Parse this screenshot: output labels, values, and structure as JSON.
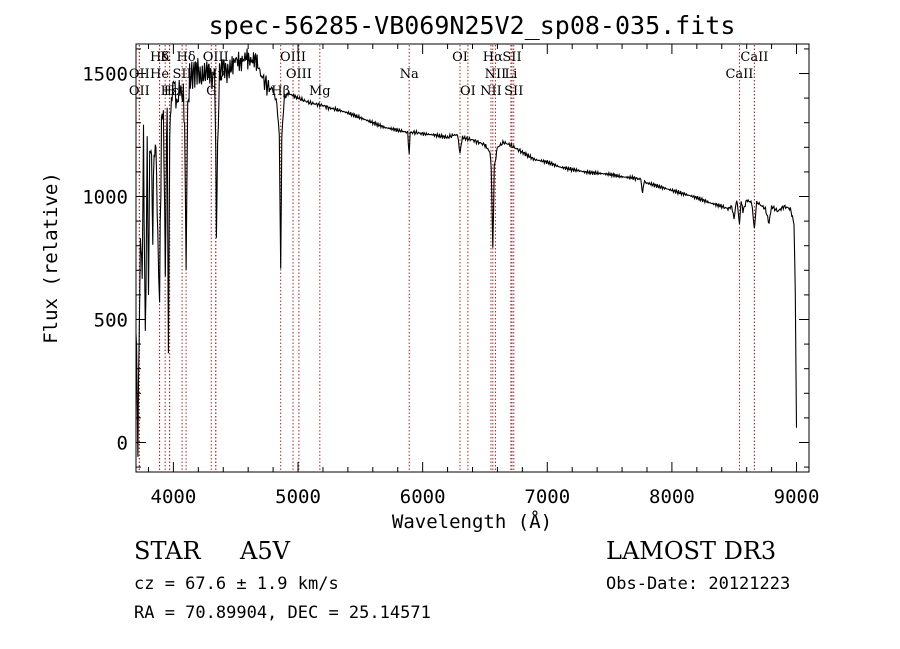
{
  "chart_data": {
    "type": "line",
    "title": "spec-56285-VB069N25V2_sp08-035.fits",
    "xlabel": "Wavelength (Å)",
    "ylabel": "Flux (relative)",
    "xlim": [
      3700,
      9100
    ],
    "ylim": [
      -120,
      1620
    ],
    "xticks": [
      4000,
      5000,
      6000,
      7000,
      8000,
      9000
    ],
    "xtick_labels": [
      "4000",
      "5000",
      "6000",
      "7000",
      "8000",
      "9000"
    ],
    "yticks": [
      0,
      500,
      1000,
      1500
    ],
    "ytick_labels": [
      "0",
      "500",
      "1000",
      "1500"
    ],
    "series": [
      {
        "name": "flux",
        "color": "#000000",
        "x": [
          3700,
          3715,
          3725,
          3735,
          3750,
          3760,
          3775,
          3790,
          3800,
          3810,
          3820,
          3835,
          3845,
          3860,
          3875,
          3889,
          3905,
          3920,
          3935,
          3950,
          3960,
          3970,
          3985,
          4000,
          4020,
          4040,
          4060,
          4080,
          4090,
          4102,
          4115,
          4130,
          4160,
          4190,
          4220,
          4250,
          4280,
          4310,
          4330,
          4340,
          4345,
          4355,
          4370,
          4400,
          4430,
          4460,
          4500,
          4540,
          4580,
          4620,
          4660,
          4700,
          4750,
          4800,
          4830,
          4850,
          4861,
          4870,
          4890,
          4920,
          4960,
          5000,
          5050,
          5100,
          5150,
          5200,
          5250,
          5300,
          5400,
          5500,
          5600,
          5700,
          5800,
          5880,
          5892,
          5900,
          5950,
          6000,
          6100,
          6200,
          6250,
          6280,
          6300,
          6320,
          6350,
          6400,
          6450,
          6500,
          6540,
          6550,
          6563,
          6575,
          6600,
          6650,
          6700,
          6750,
          6800,
          6900,
          7000,
          7100,
          7200,
          7300,
          7400,
          7500,
          7600,
          7700,
          7750,
          7765,
          7775,
          7800,
          7900,
          8000,
          8100,
          8200,
          8300,
          8400,
          8450,
          8480,
          8498,
          8510,
          8520,
          8542,
          8555,
          8570,
          8600,
          8640,
          8662,
          8680,
          8700,
          8750,
          8780,
          8800,
          8850,
          8900,
          8950,
          8980,
          8990,
          9000
        ],
        "values": [
          500,
          0,
          400,
          820,
          700,
          1240,
          400,
          1220,
          600,
          1150,
          1230,
          850,
          1180,
          1200,
          840,
          600,
          1300,
          1350,
          700,
          1400,
          300,
          1250,
          1400,
          1450,
          1420,
          1380,
          1460,
          1400,
          1300,
          700,
          1350,
          1480,
          1500,
          1520,
          1480,
          1500,
          1520,
          1480,
          1500,
          1200,
          830,
          1200,
          1500,
          1540,
          1500,
          1520,
          1560,
          1540,
          1570,
          1550,
          1560,
          1500,
          1450,
          1430,
          1380,
          1250,
          700,
          1250,
          1400,
          1420,
          1410,
          1400,
          1390,
          1380,
          1375,
          1370,
          1360,
          1355,
          1340,
          1320,
          1300,
          1280,
          1270,
          1260,
          1170,
          1260,
          1260,
          1255,
          1250,
          1240,
          1250,
          1250,
          1180,
          1240,
          1235,
          1230,
          1220,
          1210,
          1180,
          1120,
          790,
          1120,
          1200,
          1220,
          1210,
          1195,
          1180,
          1150,
          1140,
          1120,
          1110,
          1100,
          1095,
          1090,
          1080,
          1075,
          1070,
          1010,
          1060,
          1055,
          1040,
          1025,
          1010,
          995,
          975,
          960,
          950,
          960,
          910,
          950,
          990,
          890,
          985,
          940,
          985,
          975,
          870,
          980,
          970,
          950,
          890,
          960,
          940,
          960,
          950,
          890,
          600,
          60
        ]
      }
    ],
    "line_markers": [
      {
        "label": "Hδ",
        "x": 3889
      },
      {
        "label": "K",
        "x": 3934
      },
      {
        "label": "Hδ",
        "x": 4102
      },
      {
        "label": "OIII",
        "x": 4340
      },
      {
        "label": "OIII",
        "x": 4960
      },
      {
        "label": "OI",
        "x": 6300
      },
      {
        "label": "Hα",
        "x": 6563
      },
      {
        "label": "SII",
        "x": 6717
      },
      {
        "label": "CaII",
        "x": 8662
      },
      {
        "label": "OII",
        "x": 3727
      },
      {
        "label": "He",
        "x": 3889
      },
      {
        "label": "SII",
        "x": 4070
      },
      {
        "label": "Hγ",
        "x": 4340
      },
      {
        "label": "OIII",
        "x": 5007
      },
      {
        "label": "Na",
        "x": 5892
      },
      {
        "label": "NII",
        "x": 6584
      },
      {
        "label": "Li",
        "x": 6708
      },
      {
        "label": "CaII",
        "x": 8542
      },
      {
        "label": "OII",
        "x": 3727
      },
      {
        "label": "Hε",
        "x": 3970
      },
      {
        "label": "H",
        "x": 3969
      },
      {
        "label": "G",
        "x": 4304
      },
      {
        "label": "Hβ",
        "x": 4861
      },
      {
        "label": "Mg",
        "x": 5175
      },
      {
        "label": "OI",
        "x": 6363
      },
      {
        "label": "NII",
        "x": 6548
      },
      {
        "label": "SII",
        "x": 6731
      },
      {
        "label": "CaII",
        "x": 8662
      }
    ],
    "marker_color": "#a52a2a"
  },
  "info": {
    "object_type": "STAR",
    "subclass": "A5V",
    "cz": "cz = 67.6 ± 1.9 km/s",
    "coords": "RA =  70.89904, DEC =  25.14571",
    "survey": "LAMOST DR3",
    "obs_date": "Obs-Date: 20121223"
  }
}
